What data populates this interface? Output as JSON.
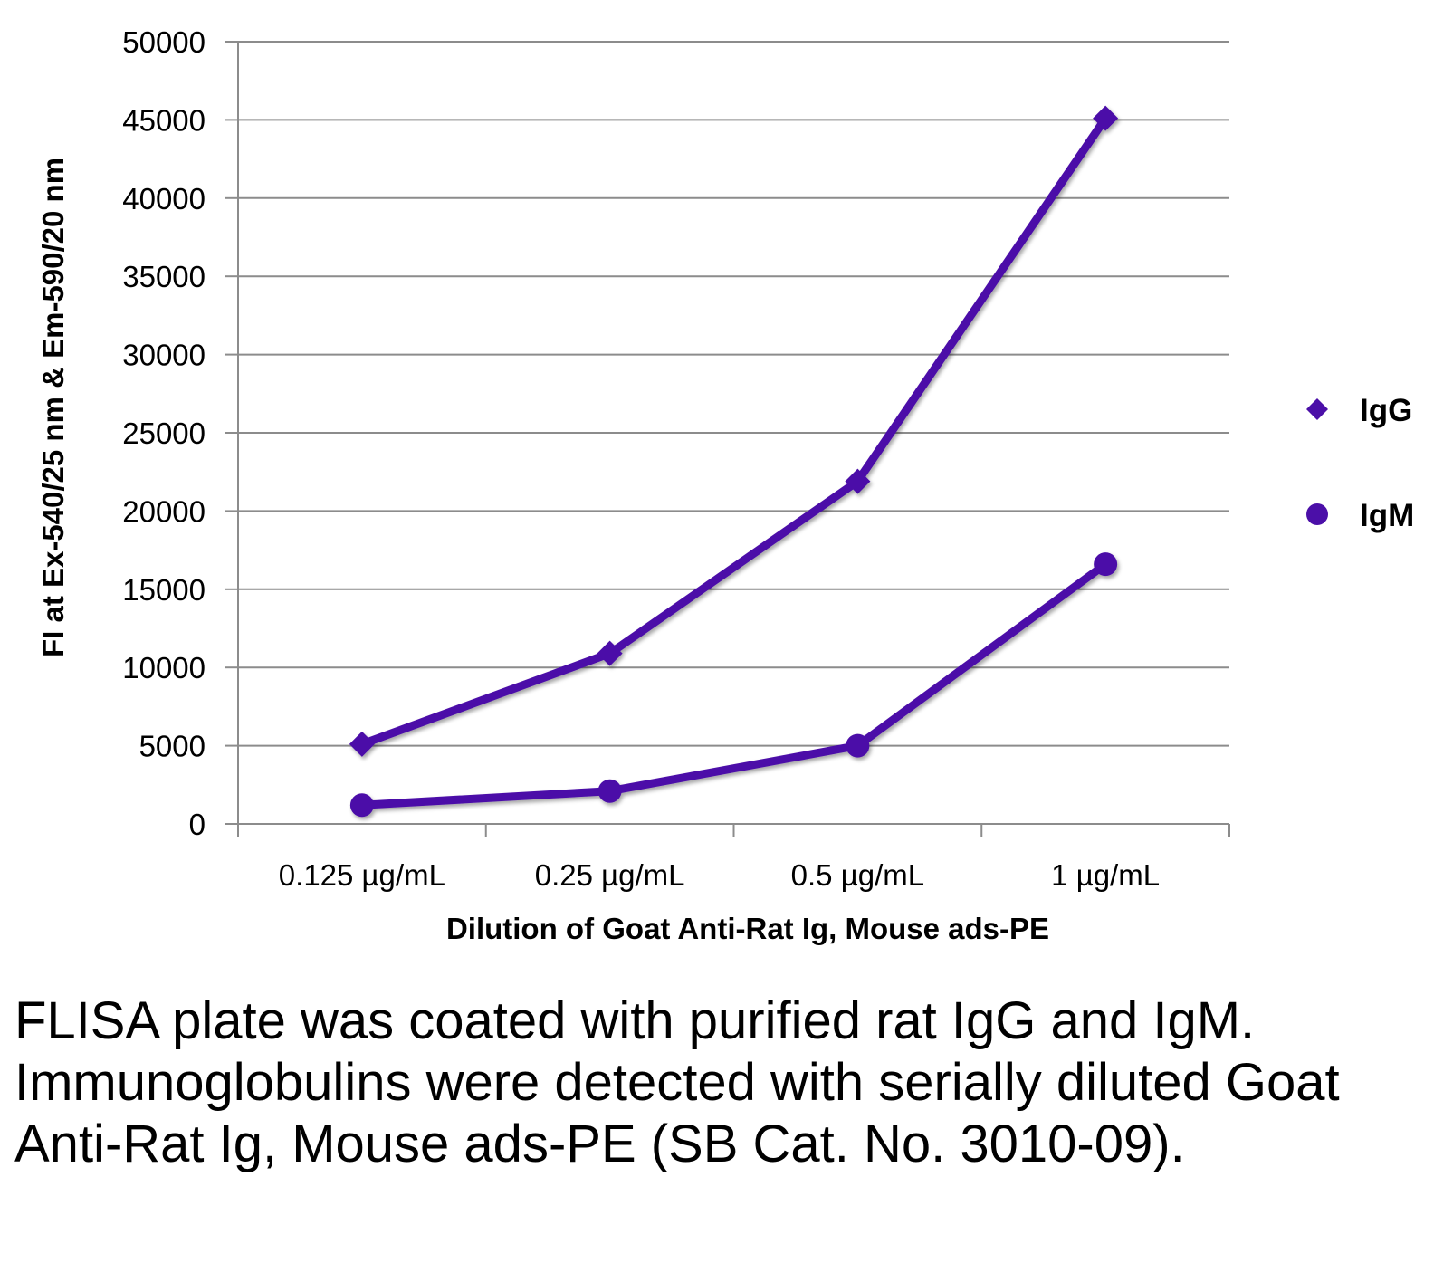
{
  "chart_data": {
    "type": "line",
    "title": "",
    "xlabel": "Dilution of Goat Anti-Rat Ig, Mouse ads-PE",
    "ylabel": "FI at Ex-540/25 nm & Em-590/20 nm",
    "categories": [
      "0.125 µg/mL",
      "0.25 µg/mL",
      "0.5 µg/mL",
      "1 µg/mL"
    ],
    "ylim": [
      0,
      50000
    ],
    "yticks": [
      0,
      5000,
      10000,
      15000,
      20000,
      25000,
      30000,
      35000,
      40000,
      45000,
      50000
    ],
    "grid": true,
    "legend_position": "right",
    "series": [
      {
        "name": "IgG",
        "marker": "diamond",
        "color": "#4B0FA8",
        "values": [
          5100,
          10900,
          21900,
          45100
        ]
      },
      {
        "name": "IgM",
        "marker": "circle",
        "color": "#4B0FA8",
        "values": [
          1200,
          2100,
          5000,
          16600
        ]
      }
    ]
  },
  "caption": "FLISA plate was coated with purified rat IgG and IgM.  Immunoglobulins were detected with serially diluted Goat Anti-Rat Ig, Mouse ads-PE (SB Cat. No. 3010-09)."
}
